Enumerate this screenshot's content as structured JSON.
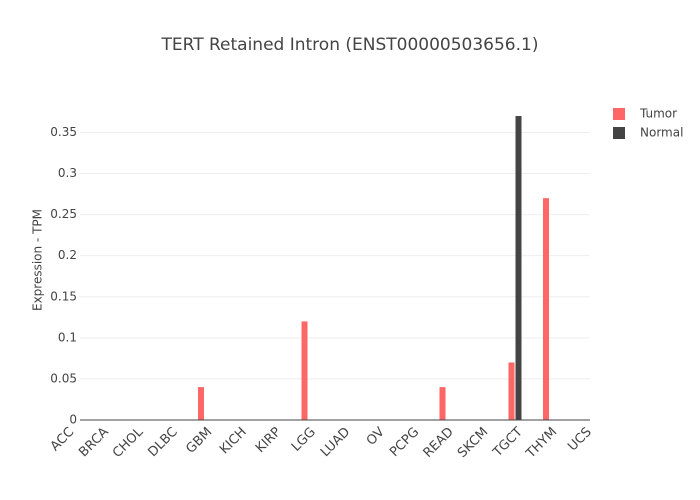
{
  "chart_data": {
    "type": "bar",
    "title": "TERT Retained Intron (ENST00000503656.1)",
    "y_label": "Expression - TPM",
    "categories": [
      "ACC",
      "BRCA",
      "CHOL",
      "DLBC",
      "GBM",
      "KICH",
      "KIRP",
      "LGG",
      "LUAD",
      "OV",
      "PCPG",
      "READ",
      "SKCM",
      "TGCT",
      "THYM",
      "UCS"
    ],
    "series": [
      {
        "name": "Tumor",
        "color": "#ff6666",
        "values": [
          0,
          0,
          0,
          0,
          0.04,
          0,
          0,
          0.12,
          0,
          0,
          0,
          0.04,
          0,
          0.07,
          0.27,
          0
        ]
      },
      {
        "name": "Normal",
        "color": "#444444",
        "values": [
          0,
          0,
          0,
          0,
          0,
          0,
          0,
          0,
          0,
          0,
          0,
          0,
          0,
          0.37,
          0,
          0
        ]
      }
    ],
    "ylim": [
      0,
      0.3895
    ],
    "yticks": [
      0,
      0.05,
      0.1,
      0.15,
      0.2,
      0.25,
      0.3,
      0.35
    ],
    "grid": true,
    "legend": "top-right"
  }
}
